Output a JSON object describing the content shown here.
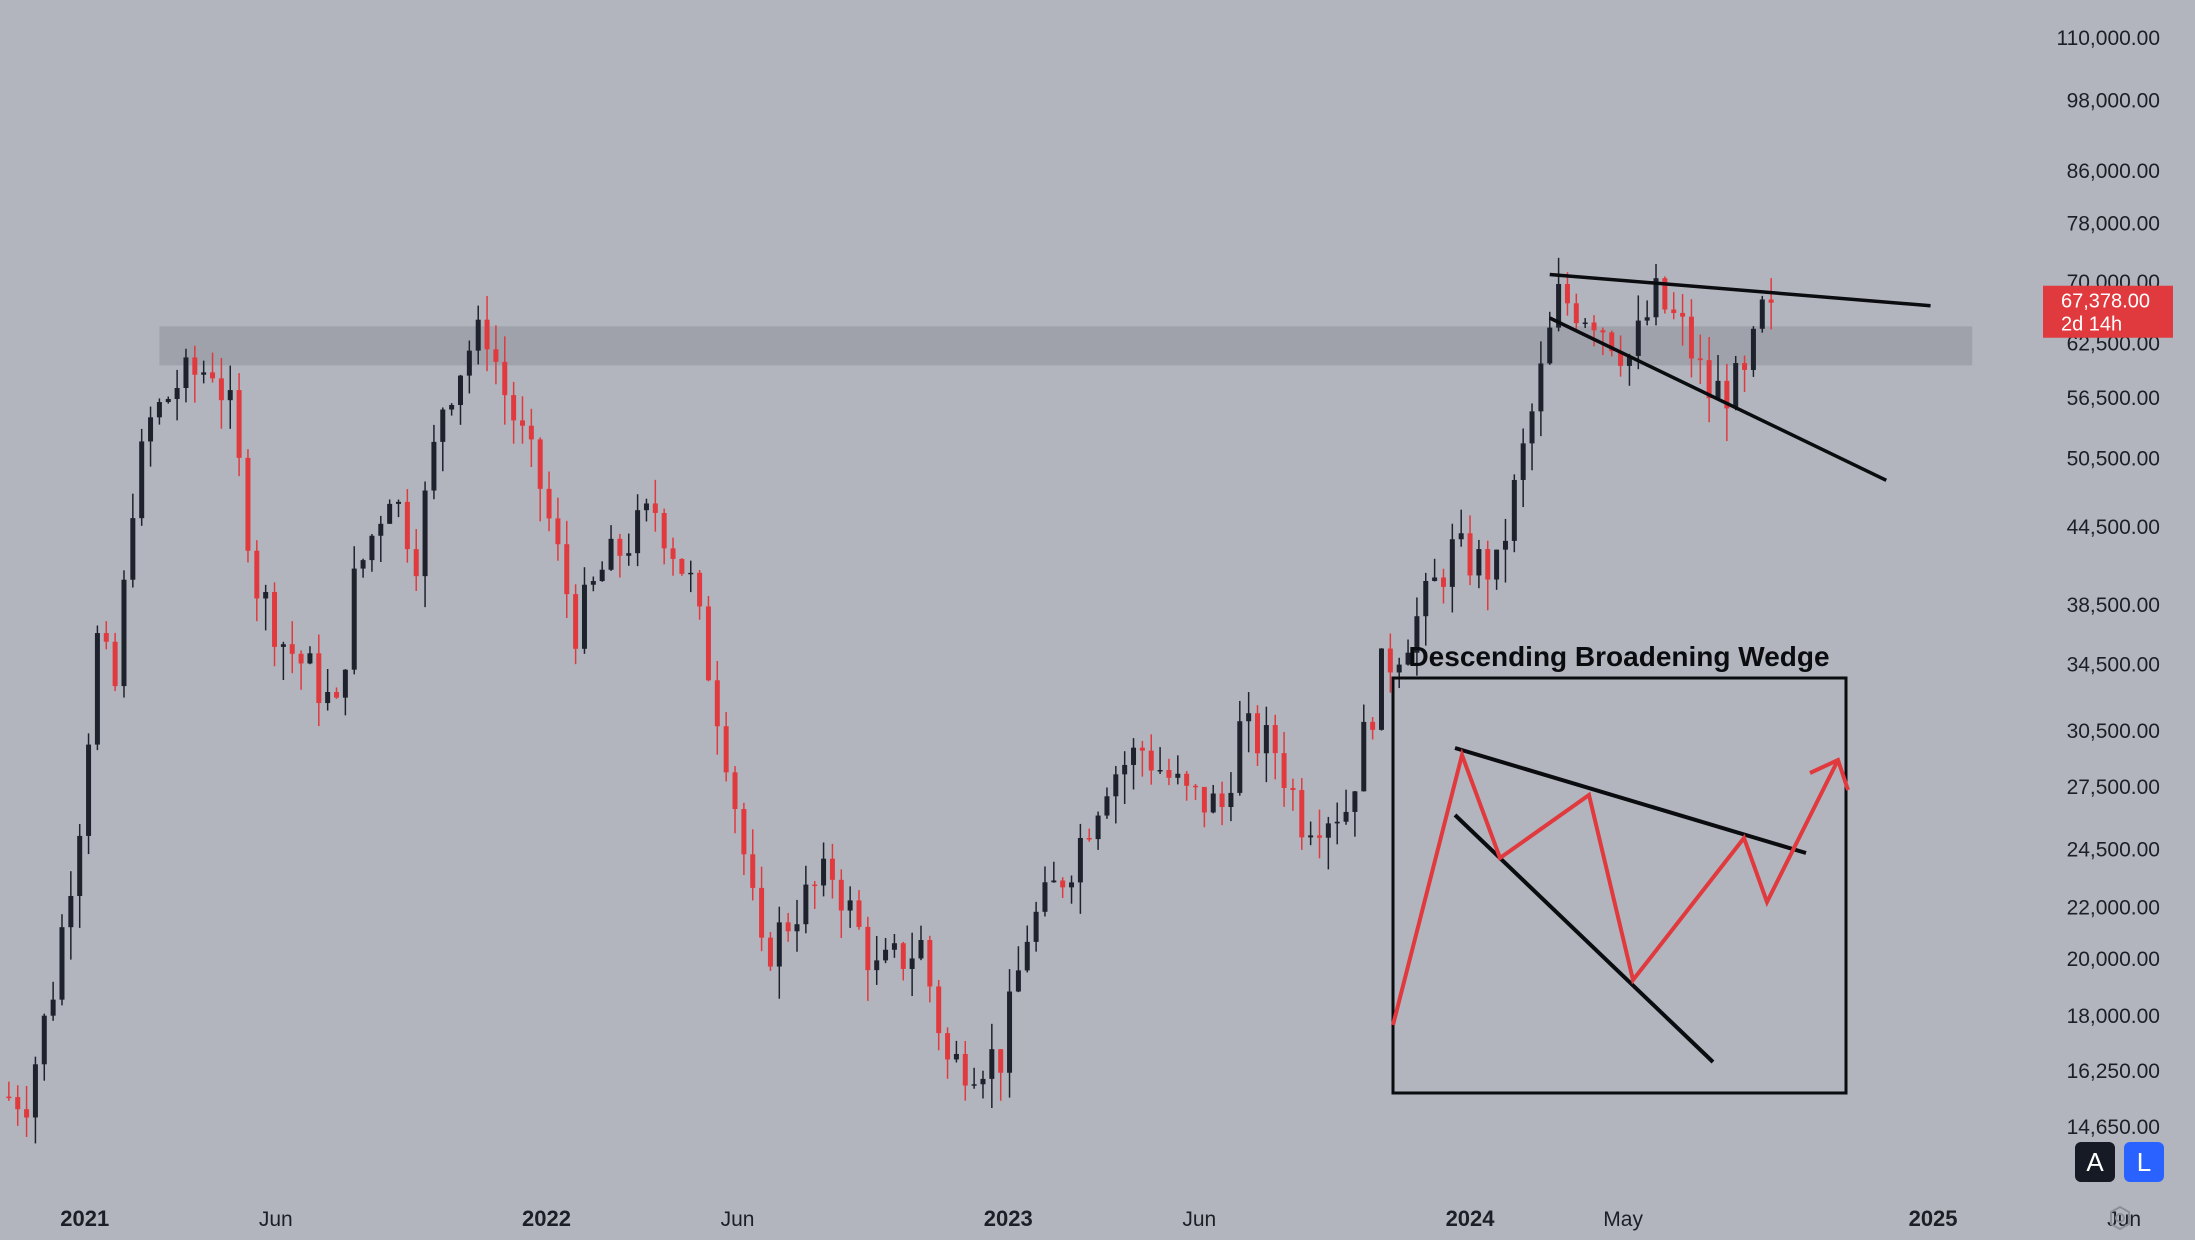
{
  "chart_data": {
    "type": "candlestick",
    "symbol_hint": "weekly",
    "scale": "log",
    "ylim": [
      12800,
      118000
    ],
    "x_range": [
      "2020-10-26",
      "2025-07-31"
    ],
    "y_ticks": [
      {
        "label": "110,000.00",
        "value": 110000
      },
      {
        "label": "98,000.00",
        "value": 98000
      },
      {
        "label": "86,000.00",
        "value": 86000
      },
      {
        "label": "78,000.00",
        "value": 78000
      },
      {
        "label": "70,000.00",
        "value": 70000
      },
      {
        "label": "62,500.00",
        "value": 62500
      },
      {
        "label": "56,500.00",
        "value": 56500
      },
      {
        "label": "50,500.00",
        "value": 50500
      },
      {
        "label": "44,500.00",
        "value": 44500
      },
      {
        "label": "38,500.00",
        "value": 38500
      },
      {
        "label": "34,500.00",
        "value": 34500
      },
      {
        "label": "30,500.00",
        "value": 30500
      },
      {
        "label": "27,500.00",
        "value": 27500
      },
      {
        "label": "24,500.00",
        "value": 24500
      },
      {
        "label": "22,000.00",
        "value": 22000
      },
      {
        "label": "20,000.00",
        "value": 20000
      },
      {
        "label": "18,000.00",
        "value": 18000
      },
      {
        "label": "16,250.00",
        "value": 16250
      },
      {
        "label": "14,650.00",
        "value": 14650
      }
    ],
    "x_ticks": [
      {
        "label": "2021",
        "date": "2021-01-01",
        "year": true
      },
      {
        "label": "Jun",
        "date": "2021-06-01",
        "year": false
      },
      {
        "label": "2022",
        "date": "2022-01-01",
        "year": true
      },
      {
        "label": "Jun",
        "date": "2022-06-01",
        "year": false
      },
      {
        "label": "2023",
        "date": "2023-01-01",
        "year": true
      },
      {
        "label": "Jun",
        "date": "2023-06-01",
        "year": false
      },
      {
        "label": "2024",
        "date": "2024-01-01",
        "year": true
      },
      {
        "label": "May",
        "date": "2024-05-01",
        "year": false
      },
      {
        "label": "2025",
        "date": "2025-01-01",
        "year": true
      },
      {
        "label": "Jun",
        "date": "2025-06-01",
        "year": false
      }
    ],
    "close_path": [
      [
        "2020-11-16",
        15500
      ],
      [
        "2020-12-07",
        19000
      ],
      [
        "2020-12-28",
        26000
      ],
      [
        "2021-01-11",
        36000
      ],
      [
        "2021-01-25",
        33000
      ],
      [
        "2021-02-08",
        47000
      ],
      [
        "2021-02-22",
        54000
      ],
      [
        "2021-03-15",
        58000
      ],
      [
        "2021-04-12",
        60000
      ],
      [
        "2021-04-26",
        55000
      ],
      [
        "2021-05-17",
        40000
      ],
      [
        "2021-06-07",
        36000
      ],
      [
        "2021-06-28",
        34000
      ],
      [
        "2021-07-19",
        31500
      ],
      [
        "2021-08-02",
        40000
      ],
      [
        "2021-08-30",
        48000
      ],
      [
        "2021-09-20",
        42500
      ],
      [
        "2021-10-11",
        56000
      ],
      [
        "2021-11-01",
        62000
      ],
      [
        "2021-11-15",
        64000
      ],
      [
        "2021-11-29",
        57000
      ],
      [
        "2021-12-27",
        48000
      ],
      [
        "2022-01-24",
        37000
      ],
      [
        "2022-02-14",
        41000
      ],
      [
        "2022-03-28",
        46000
      ],
      [
        "2022-04-25",
        40000
      ],
      [
        "2022-05-23",
        29500
      ],
      [
        "2022-06-20",
        20000
      ],
      [
        "2022-07-18",
        22000
      ],
      [
        "2022-08-15",
        23500
      ],
      [
        "2022-09-19",
        19500
      ],
      [
        "2022-10-24",
        20500
      ],
      [
        "2022-11-14",
        16500
      ],
      [
        "2022-12-26",
        16700
      ],
      [
        "2023-01-16",
        21000
      ],
      [
        "2023-02-20",
        24000
      ],
      [
        "2023-03-20",
        28000
      ],
      [
        "2023-04-17",
        29500
      ],
      [
        "2023-05-22",
        27000
      ],
      [
        "2023-06-19",
        26500
      ],
      [
        "2023-07-03",
        30500
      ],
      [
        "2023-07-31",
        29500
      ],
      [
        "2023-08-21",
        26000
      ],
      [
        "2023-09-25",
        26500
      ],
      [
        "2023-10-23",
        34000
      ],
      [
        "2023-11-20",
        37500
      ],
      [
        "2023-12-18",
        42500
      ],
      [
        "2024-01-22",
        41000
      ],
      [
        "2024-02-12",
        51000
      ],
      [
        "2024-03-11",
        68000
      ],
      [
        "2024-04-08",
        66000
      ],
      [
        "2024-05-06",
        61000
      ],
      [
        "2024-05-27",
        68000
      ],
      [
        "2024-06-17",
        64000
      ],
      [
        "2024-07-08",
        57000
      ],
      [
        "2024-08-05",
        58000
      ],
      [
        "2024-08-19",
        66000
      ],
      [
        "2024-08-26",
        67378
      ]
    ],
    "resistance_zone": {
      "from": "2021-03-01",
      "to": "2025-02-01",
      "low": 60000,
      "high": 64500
    },
    "trendlines": [
      {
        "from_date": "2024-03-04",
        "from_price": 71000,
        "to_date": "2024-12-30",
        "to_price": 67000
      },
      {
        "from_date": "2024-03-04",
        "from_price": 65500,
        "to_date": "2024-11-25",
        "to_price": 48500
      }
    ],
    "last_price": {
      "label": "67,378.00",
      "countdown": "2d 14h",
      "value": 67378
    },
    "colors": {
      "up": "#1e222d",
      "down": "#e03a3e",
      "background": "#b2b5be",
      "zone": "#9fa2ab"
    }
  },
  "inset": {
    "title": "Descending Broadening Wedge",
    "zigzag_color": "#e03a3e"
  },
  "controls": {
    "auto_label": "A",
    "log_label": "L",
    "log_color": "#2962ff"
  }
}
